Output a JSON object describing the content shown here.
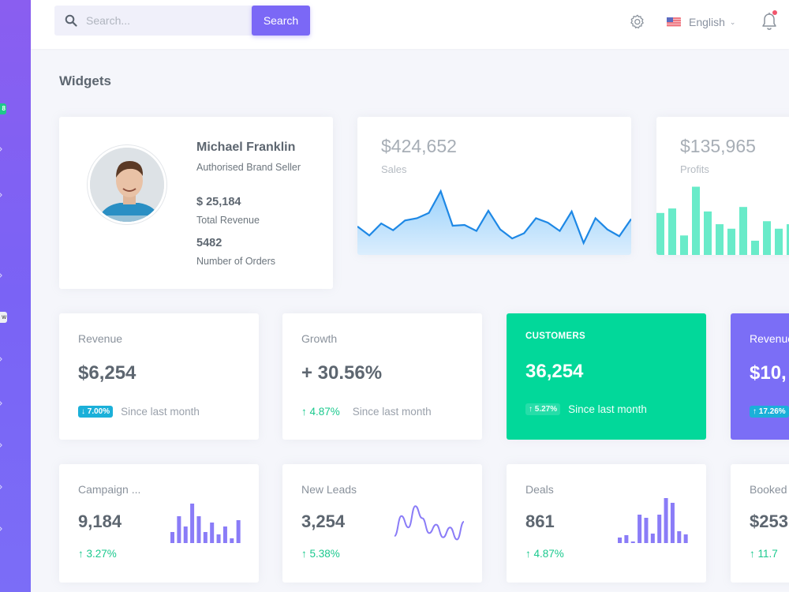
{
  "sidebar": {
    "badge_new_count": "8",
    "badge_label": "w",
    "chevron_rows_y": [
      187,
      245,
      347,
      453,
      509,
      562,
      615,
      668
    ]
  },
  "topbar": {
    "search_placeholder": "Search...",
    "search_button": "Search",
    "language": "English",
    "icons": [
      "search-icon",
      "gear-icon",
      "us-flag-icon",
      "chevron-down-icon",
      "bell-icon"
    ],
    "notification_dot_color": "#f1556c"
  },
  "page": {
    "title": "Widgets"
  },
  "profile": {
    "name": "Michael Franklin",
    "role": "Authorised Brand Seller",
    "revenue": "$ 25,184",
    "revenue_label": "Total Revenue",
    "orders": "5482",
    "orders_label": "Number of Orders"
  },
  "sales": {
    "value": "$424,652",
    "label": "Sales",
    "color": "#1e88e5",
    "series": [
      38,
      26,
      42,
      33,
      46,
      49,
      56,
      85,
      39,
      40,
      32,
      59,
      34,
      22,
      29,
      49,
      43,
      32,
      58,
      16,
      49,
      34,
      25,
      48
    ]
  },
  "profits": {
    "value": "$135,965",
    "label": "Profits",
    "color": "#69ebc9",
    "series": [
      56,
      62,
      26,
      91,
      58,
      41,
      35,
      64,
      19,
      45,
      35,
      41
    ]
  },
  "stats": [
    {
      "title": "Revenue",
      "value": "$6,254",
      "chip": "↓ 7.00%",
      "since": "Since last month",
      "variant": "white",
      "chip_color": "#1bb0d9"
    },
    {
      "title": "Growth",
      "value": "+ 30.56%",
      "trend": "↑ 4.87%",
      "since": "Since last month",
      "variant": "white"
    },
    {
      "title": "CUSTOMERS",
      "value": "36,254",
      "chip": "↑ 5.27%",
      "since": "Since last month",
      "variant": "green",
      "bg_color": "#02d89a"
    },
    {
      "title": "Revenue",
      "value": "$10,",
      "chip": "↑ 17.26%",
      "since": "Since last month",
      "variant": "purple",
      "bg_color": "#7b6ef6"
    }
  ],
  "minis": [
    {
      "title": "Campaign ...",
      "value": "9,184",
      "trend": "↑ 3.27%",
      "chart": "bar",
      "series": [
        14,
        34,
        21,
        50,
        34,
        14,
        26,
        11,
        21,
        6,
        29
      ]
    },
    {
      "title": "New Leads",
      "value": "3,254",
      "trend": "↑ 5.38%",
      "chart": "line",
      "series": [
        10,
        38,
        22,
        52,
        35,
        14,
        26,
        8,
        22,
        5,
        30
      ]
    },
    {
      "title": "Deals",
      "value": "861",
      "trend": "↑ 4.87%",
      "chart": "bar",
      "series": [
        7,
        10,
        1,
        36,
        32,
        12,
        36,
        57,
        51,
        15,
        11
      ]
    },
    {
      "title": "Booked",
      "value": "$253",
      "trend": "↑ 11.7",
      "chart": "none"
    }
  ],
  "colors": {
    "accent": "#7b68f6",
    "success": "#1bc98e",
    "info": "#1bb0d9",
    "mini_chart": "#8a7cf7"
  }
}
